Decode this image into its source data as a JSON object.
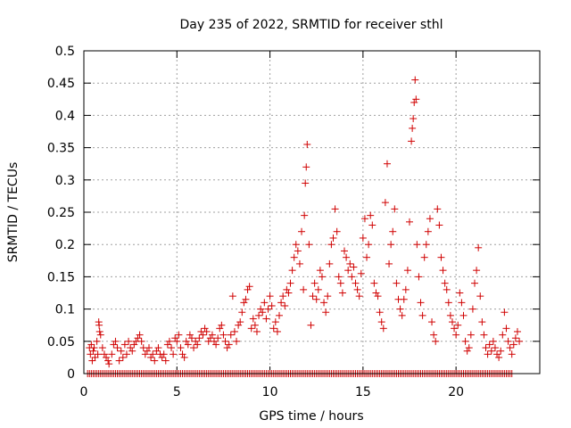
{
  "chart_data": {
    "type": "scatter",
    "title": "Day 235 of 2022, SRMTID for receiver sthl",
    "xlabel": "GPS time / hours",
    "ylabel": "SRMTID / TECUs",
    "xlim": [
      0,
      24.5
    ],
    "ylim": [
      0,
      0.5
    ],
    "x_ticks": [
      0,
      5,
      10,
      15,
      20
    ],
    "y_ticks": [
      0,
      0.05,
      0.1,
      0.15,
      0.2,
      0.25,
      0.3,
      0.35,
      0.4,
      0.45,
      0.5
    ],
    "x_tick_labels": [
      "0",
      "5",
      "10",
      "15",
      "20"
    ],
    "y_tick_labels": [
      "0",
      "0.05",
      "0.1",
      "0.15",
      "0.2",
      "0.25",
      "0.3",
      "0.35",
      "0.4",
      "0.45",
      "0.5"
    ],
    "grid": true,
    "marker": "plus",
    "series": [
      {
        "color": "#d00000",
        "points": [
          [
            0.3,
            0.04
          ],
          [
            0.35,
            0.03
          ],
          [
            0.4,
            0.045
          ],
          [
            0.45,
            0.02
          ],
          [
            0.5,
            0.035
          ],
          [
            0.55,
            0.04
          ],
          [
            0.6,
            0.025
          ],
          [
            0.7,
            0.05
          ],
          [
            0.75,
            0.03
          ],
          [
            0.8,
            0.08
          ],
          [
            0.82,
            0.075
          ],
          [
            0.85,
            0.065
          ],
          [
            0.9,
            0.06
          ],
          [
            1.0,
            0.04
          ],
          [
            1.1,
            0.03
          ],
          [
            1.2,
            0.025
          ],
          [
            1.3,
            0.02
          ],
          [
            1.35,
            0.015
          ],
          [
            1.5,
            0.03
          ],
          [
            1.6,
            0.045
          ],
          [
            1.7,
            0.05
          ],
          [
            1.8,
            0.04
          ],
          [
            1.9,
            0.02
          ],
          [
            2.0,
            0.035
          ],
          [
            2.1,
            0.025
          ],
          [
            2.2,
            0.045
          ],
          [
            2.3,
            0.03
          ],
          [
            2.4,
            0.05
          ],
          [
            2.5,
            0.04
          ],
          [
            2.6,
            0.035
          ],
          [
            2.7,
            0.045
          ],
          [
            2.8,
            0.05
          ],
          [
            2.9,
            0.055
          ],
          [
            3.0,
            0.06
          ],
          [
            3.1,
            0.05
          ],
          [
            3.2,
            0.04
          ],
          [
            3.3,
            0.03
          ],
          [
            3.4,
            0.035
          ],
          [
            3.5,
            0.04
          ],
          [
            3.6,
            0.025
          ],
          [
            3.7,
            0.03
          ],
          [
            3.8,
            0.02
          ],
          [
            3.9,
            0.035
          ],
          [
            4.0,
            0.04
          ],
          [
            4.1,
            0.03
          ],
          [
            4.2,
            0.025
          ],
          [
            4.3,
            0.03
          ],
          [
            4.4,
            0.02
          ],
          [
            4.5,
            0.045
          ],
          [
            4.6,
            0.05
          ],
          [
            4.7,
            0.04
          ],
          [
            4.8,
            0.03
          ],
          [
            4.9,
            0.055
          ],
          [
            5.0,
            0.05
          ],
          [
            5.1,
            0.06
          ],
          [
            5.2,
            0.04
          ],
          [
            5.3,
            0.03
          ],
          [
            5.4,
            0.025
          ],
          [
            5.5,
            0.05
          ],
          [
            5.6,
            0.045
          ],
          [
            5.7,
            0.06
          ],
          [
            5.8,
            0.055
          ],
          [
            5.9,
            0.04
          ],
          [
            6.0,
            0.05
          ],
          [
            6.1,
            0.045
          ],
          [
            6.2,
            0.055
          ],
          [
            6.3,
            0.065
          ],
          [
            6.4,
            0.06
          ],
          [
            6.5,
            0.07
          ],
          [
            6.6,
            0.065
          ],
          [
            6.7,
            0.05
          ],
          [
            6.8,
            0.055
          ],
          [
            6.9,
            0.06
          ],
          [
            7.0,
            0.05
          ],
          [
            7.1,
            0.045
          ],
          [
            7.2,
            0.055
          ],
          [
            7.3,
            0.07
          ],
          [
            7.4,
            0.075
          ],
          [
            7.5,
            0.06
          ],
          [
            7.6,
            0.05
          ],
          [
            7.7,
            0.04
          ],
          [
            7.8,
            0.045
          ],
          [
            7.9,
            0.06
          ],
          [
            8.0,
            0.12
          ],
          [
            8.1,
            0.065
          ],
          [
            8.2,
            0.05
          ],
          [
            8.3,
            0.075
          ],
          [
            8.4,
            0.08
          ],
          [
            8.5,
            0.095
          ],
          [
            8.6,
            0.11
          ],
          [
            8.7,
            0.115
          ],
          [
            8.8,
            0.13
          ],
          [
            8.9,
            0.135
          ],
          [
            9.0,
            0.07
          ],
          [
            9.1,
            0.085
          ],
          [
            9.2,
            0.075
          ],
          [
            9.3,
            0.065
          ],
          [
            9.4,
            0.09
          ],
          [
            9.5,
            0.1
          ],
          [
            9.6,
            0.095
          ],
          [
            9.7,
            0.11
          ],
          [
            9.8,
            0.085
          ],
          [
            9.9,
            0.1
          ],
          [
            10.0,
            0.12
          ],
          [
            10.1,
            0.105
          ],
          [
            10.2,
            0.07
          ],
          [
            10.3,
            0.08
          ],
          [
            10.4,
            0.065
          ],
          [
            10.5,
            0.09
          ],
          [
            10.6,
            0.11
          ],
          [
            10.7,
            0.12
          ],
          [
            10.8,
            0.105
          ],
          [
            10.9,
            0.13
          ],
          [
            11.0,
            0.125
          ],
          [
            11.1,
            0.14
          ],
          [
            11.2,
            0.16
          ],
          [
            11.3,
            0.18
          ],
          [
            11.4,
            0.2
          ],
          [
            11.5,
            0.19
          ],
          [
            11.6,
            0.17
          ],
          [
            11.7,
            0.22
          ],
          [
            11.8,
            0.13
          ],
          [
            11.85,
            0.245
          ],
          [
            11.9,
            0.295
          ],
          [
            11.95,
            0.32
          ],
          [
            12.0,
            0.355
          ],
          [
            12.1,
            0.2
          ],
          [
            12.2,
            0.075
          ],
          [
            12.3,
            0.12
          ],
          [
            12.4,
            0.14
          ],
          [
            12.5,
            0.115
          ],
          [
            12.6,
            0.13
          ],
          [
            12.7,
            0.16
          ],
          [
            12.8,
            0.15
          ],
          [
            12.9,
            0.11
          ],
          [
            13.0,
            0.095
          ],
          [
            13.1,
            0.12
          ],
          [
            13.2,
            0.17
          ],
          [
            13.3,
            0.2
          ],
          [
            13.4,
            0.21
          ],
          [
            13.5,
            0.255
          ],
          [
            13.6,
            0.22
          ],
          [
            13.7,
            0.15
          ],
          [
            13.8,
            0.14
          ],
          [
            13.9,
            0.125
          ],
          [
            14.0,
            0.19
          ],
          [
            14.1,
            0.18
          ],
          [
            14.2,
            0.16
          ],
          [
            14.3,
            0.17
          ],
          [
            14.4,
            0.15
          ],
          [
            14.5,
            0.165
          ],
          [
            14.6,
            0.14
          ],
          [
            14.7,
            0.13
          ],
          [
            14.8,
            0.12
          ],
          [
            14.9,
            0.155
          ],
          [
            15.0,
            0.21
          ],
          [
            15.1,
            0.24
          ],
          [
            15.2,
            0.18
          ],
          [
            15.3,
            0.2
          ],
          [
            15.4,
            0.245
          ],
          [
            15.5,
            0.23
          ],
          [
            15.6,
            0.14
          ],
          [
            15.7,
            0.125
          ],
          [
            15.8,
            0.12
          ],
          [
            15.9,
            0.095
          ],
          [
            16.0,
            0.08
          ],
          [
            16.1,
            0.07
          ],
          [
            16.2,
            0.265
          ],
          [
            16.3,
            0.325
          ],
          [
            16.4,
            0.17
          ],
          [
            16.5,
            0.2
          ],
          [
            16.6,
            0.22
          ],
          [
            16.7,
            0.255
          ],
          [
            16.8,
            0.14
          ],
          [
            16.9,
            0.115
          ],
          [
            17.0,
            0.1
          ],
          [
            17.1,
            0.09
          ],
          [
            17.2,
            0.115
          ],
          [
            17.3,
            0.13
          ],
          [
            17.4,
            0.16
          ],
          [
            17.5,
            0.235
          ],
          [
            17.6,
            0.36
          ],
          [
            17.65,
            0.38
          ],
          [
            17.7,
            0.395
          ],
          [
            17.75,
            0.42
          ],
          [
            17.8,
            0.455
          ],
          [
            17.85,
            0.425
          ],
          [
            17.9,
            0.2
          ],
          [
            18.0,
            0.15
          ],
          [
            18.1,
            0.11
          ],
          [
            18.2,
            0.09
          ],
          [
            18.3,
            0.18
          ],
          [
            18.4,
            0.2
          ],
          [
            18.5,
            0.22
          ],
          [
            18.6,
            0.24
          ],
          [
            18.7,
            0.08
          ],
          [
            18.8,
            0.06
          ],
          [
            18.9,
            0.05
          ],
          [
            19.0,
            0.255
          ],
          [
            19.1,
            0.23
          ],
          [
            19.2,
            0.18
          ],
          [
            19.3,
            0.16
          ],
          [
            19.4,
            0.14
          ],
          [
            19.5,
            0.13
          ],
          [
            19.6,
            0.11
          ],
          [
            19.7,
            0.09
          ],
          [
            19.8,
            0.08
          ],
          [
            19.9,
            0.07
          ],
          [
            20.0,
            0.06
          ],
          [
            20.1,
            0.075
          ],
          [
            20.2,
            0.125
          ],
          [
            20.3,
            0.11
          ],
          [
            20.4,
            0.09
          ],
          [
            20.5,
            0.05
          ],
          [
            20.6,
            0.035
          ],
          [
            20.7,
            0.04
          ],
          [
            20.8,
            0.06
          ],
          [
            20.9,
            0.1
          ],
          [
            21.0,
            0.14
          ],
          [
            21.1,
            0.16
          ],
          [
            21.2,
            0.195
          ],
          [
            21.3,
            0.12
          ],
          [
            21.4,
            0.08
          ],
          [
            21.5,
            0.06
          ],
          [
            21.6,
            0.04
          ],
          [
            21.7,
            0.03
          ],
          [
            21.8,
            0.045
          ],
          [
            21.9,
            0.035
          ],
          [
            22.0,
            0.05
          ],
          [
            22.1,
            0.04
          ],
          [
            22.2,
            0.03
          ],
          [
            22.3,
            0.025
          ],
          [
            22.4,
            0.035
          ],
          [
            22.5,
            0.06
          ],
          [
            22.6,
            0.095
          ],
          [
            22.7,
            0.07
          ],
          [
            22.8,
            0.05
          ],
          [
            22.9,
            0.04
          ],
          [
            23.0,
            0.03
          ],
          [
            23.1,
            0.045
          ],
          [
            23.2,
            0.055
          ],
          [
            23.3,
            0.065
          ],
          [
            23.4,
            0.05
          ]
        ]
      }
    ],
    "baseline_series": {
      "color": "#d00000",
      "y": 0,
      "x_start": 0.2,
      "x_end": 23.0,
      "x_step": 0.1
    }
  }
}
